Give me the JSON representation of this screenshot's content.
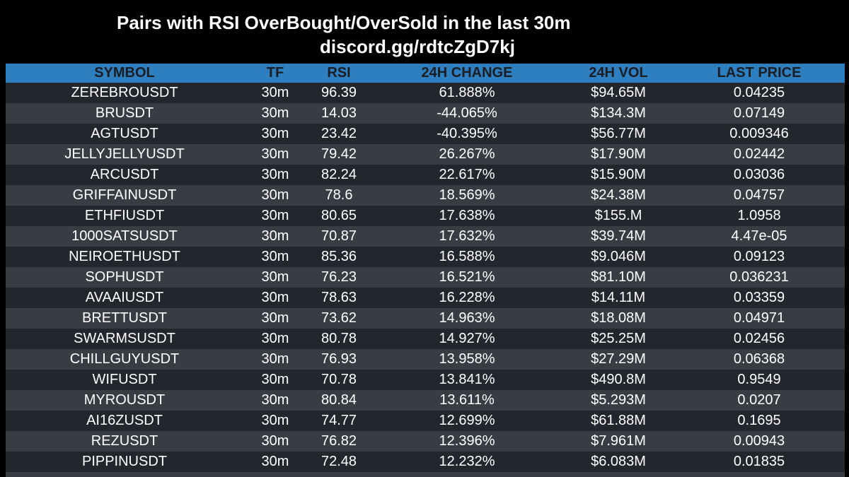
{
  "header": {
    "title": "Pairs with RSI OverBought/OverSold in the last 30m",
    "subtitle": "discord.gg/rdtcZgD7kj"
  },
  "colors": {
    "background": "#000000",
    "header_row": "#2e7fbf",
    "row_odd": "#23272d",
    "row_even": "#383d44",
    "text": "#ffffff"
  },
  "table": {
    "columns": [
      "SYMBOL",
      "TF",
      "RSI",
      "24H CHANGE",
      "24H VOL",
      "LAST PRICE"
    ],
    "rows": [
      {
        "symbol": "ZEREBROUSDT",
        "tf": "30m",
        "rsi": "96.39",
        "change": "61.888%",
        "vol": "$94.65M",
        "price": "0.04235"
      },
      {
        "symbol": "BRUSDT",
        "tf": "30m",
        "rsi": "14.03",
        "change": "-44.065%",
        "vol": "$134.3M",
        "price": "0.07149"
      },
      {
        "symbol": "AGTUSDT",
        "tf": "30m",
        "rsi": "23.42",
        "change": "-40.395%",
        "vol": "$56.77M",
        "price": "0.009346"
      },
      {
        "symbol": "JELLYJELLYUSDT",
        "tf": "30m",
        "rsi": "79.42",
        "change": "26.267%",
        "vol": "$17.90M",
        "price": "0.02442"
      },
      {
        "symbol": "ARCUSDT",
        "tf": "30m",
        "rsi": "82.24",
        "change": "22.617%",
        "vol": "$15.90M",
        "price": "0.03036"
      },
      {
        "symbol": "GRIFFAINUSDT",
        "tf": "30m",
        "rsi": "78.6",
        "change": "18.569%",
        "vol": "$24.38M",
        "price": "0.04757"
      },
      {
        "symbol": "ETHFIUSDT",
        "tf": "30m",
        "rsi": "80.65",
        "change": "17.638%",
        "vol": "$155.M",
        "price": "1.0958"
      },
      {
        "symbol": "1000SATSUSDT",
        "tf": "30m",
        "rsi": "70.87",
        "change": "17.632%",
        "vol": "$39.74M",
        "price": "4.47e-05"
      },
      {
        "symbol": "NEIROETHUSDT",
        "tf": "30m",
        "rsi": "85.36",
        "change": "16.588%",
        "vol": "$9.046M",
        "price": "0.09123"
      },
      {
        "symbol": "SOPHUSDT",
        "tf": "30m",
        "rsi": "76.23",
        "change": "16.521%",
        "vol": "$81.10M",
        "price": "0.036231"
      },
      {
        "symbol": "AVAAIUSDT",
        "tf": "30m",
        "rsi": "78.63",
        "change": "16.228%",
        "vol": "$14.11M",
        "price": "0.03359"
      },
      {
        "symbol": "BRETTUSDT",
        "tf": "30m",
        "rsi": "73.62",
        "change": "14.963%",
        "vol": "$18.08M",
        "price": "0.04971"
      },
      {
        "symbol": "SWARMSUSDT",
        "tf": "30m",
        "rsi": "80.78",
        "change": "14.927%",
        "vol": "$25.25M",
        "price": "0.02456"
      },
      {
        "symbol": "CHILLGUYUSDT",
        "tf": "30m",
        "rsi": "76.93",
        "change": "13.958%",
        "vol": "$27.29M",
        "price": "0.06368"
      },
      {
        "symbol": "WIFUSDT",
        "tf": "30m",
        "rsi": "70.78",
        "change": "13.841%",
        "vol": "$490.8M",
        "price": "0.9549"
      },
      {
        "symbol": "MYROUSDT",
        "tf": "30m",
        "rsi": "80.84",
        "change": "13.611%",
        "vol": "$5.293M",
        "price": "0.0207"
      },
      {
        "symbol": "AI16ZUSDT",
        "tf": "30m",
        "rsi": "74.77",
        "change": "12.699%",
        "vol": "$61.88M",
        "price": "0.1695"
      },
      {
        "symbol": "REZUSDT",
        "tf": "30m",
        "rsi": "76.82",
        "change": "12.396%",
        "vol": "$7.961M",
        "price": "0.00943"
      },
      {
        "symbol": "PIPPINUSDT",
        "tf": "30m",
        "rsi": "72.48",
        "change": "12.232%",
        "vol": "$6.083M",
        "price": "0.01835"
      }
    ]
  }
}
